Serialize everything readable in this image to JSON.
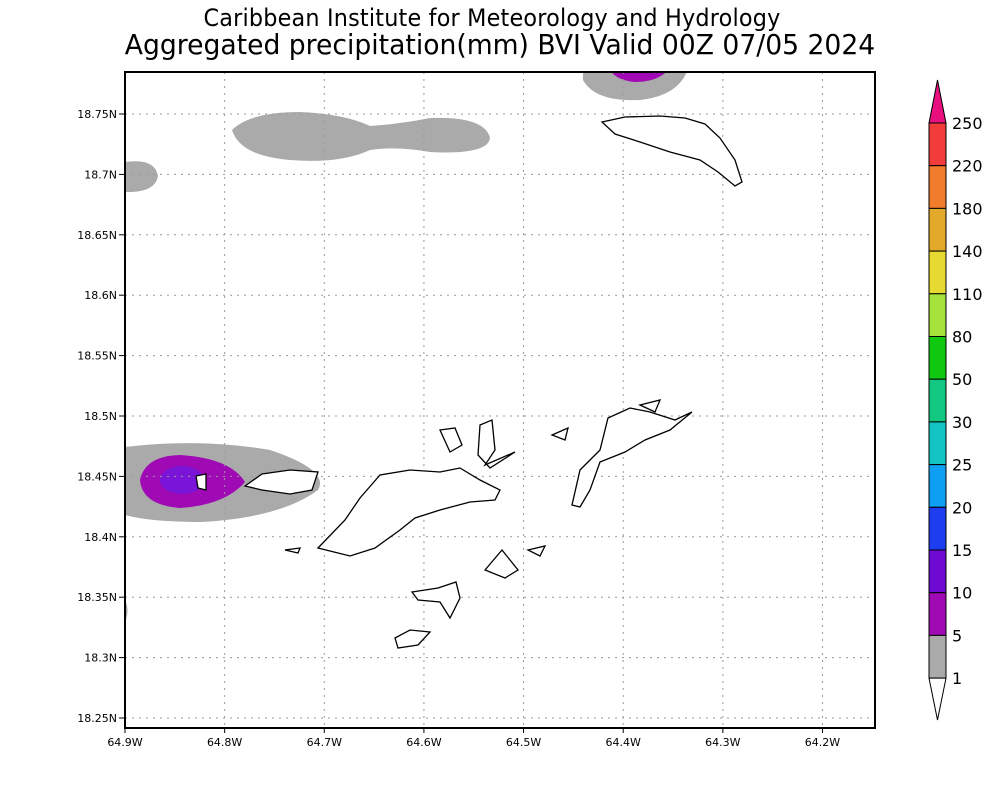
{
  "header": {
    "title_line1": "Caribbean Institute for Meteorology and Hydrology",
    "title_line2": "Aggregated precipitation(mm) BVI Valid 00Z 07/05 2024"
  },
  "map": {
    "lon_ticks": [
      "64.9W",
      "64.8W",
      "64.7W",
      "64.6W",
      "64.5W",
      "64.4W",
      "64.3W",
      "64.2W"
    ],
    "lon_values": [
      -64.9,
      -64.8,
      -64.7,
      -64.6,
      -64.5,
      -64.4,
      -64.3,
      -64.2
    ],
    "lat_ticks": [
      "18.75N",
      "18.7N",
      "18.65N",
      "18.6N",
      "18.55N",
      "18.5N",
      "18.45N",
      "18.4N",
      "18.35N",
      "18.3N",
      "18.25N"
    ],
    "lat_values": [
      18.75,
      18.7,
      18.65,
      18.6,
      18.55,
      18.5,
      18.45,
      18.4,
      18.35,
      18.3,
      18.25
    ]
  },
  "colorbar": {
    "labels": [
      "250",
      "220",
      "180",
      "140",
      "110",
      "80",
      "50",
      "30",
      "25",
      "20",
      "15",
      "10",
      "5",
      "1"
    ],
    "colors": [
      "#e8107f",
      "#f23c3c",
      "#f07c2c",
      "#e3a92a",
      "#e6da32",
      "#a5e23a",
      "#10c810",
      "#12c880",
      "#12c4c4",
      "#0f9ff2",
      "#1e3cf0",
      "#6e0ad2",
      "#a00ab4",
      "#aaaaaa",
      "#ffffff"
    ]
  }
}
